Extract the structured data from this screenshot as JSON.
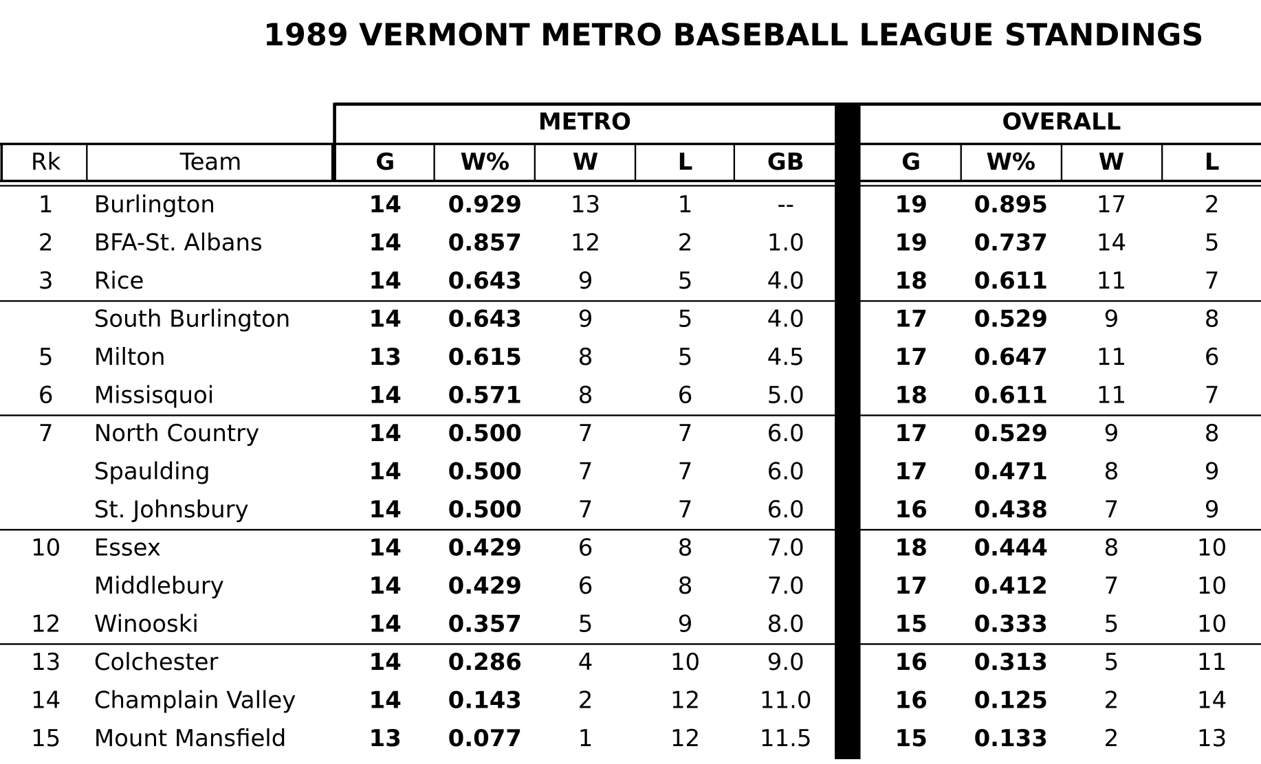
{
  "header": {
    "title": "1989 VERMONT METRO BASEBALL LEAGUE STANDINGS"
  },
  "table": {
    "groups": [
      "METRO",
      "OVERALL"
    ],
    "columns": [
      "Rk",
      "Team",
      "G",
      "W%",
      "W",
      "L",
      "GB",
      "G",
      "W%",
      "W",
      "L"
    ],
    "rows": [
      [
        "1",
        "Burlington",
        "14",
        "0.929",
        "13",
        "1",
        "--",
        "19",
        "0.895",
        "17",
        "2"
      ],
      [
        "2",
        "BFA-St. Albans",
        "14",
        "0.857",
        "12",
        "2",
        "1.0",
        "19",
        "0.737",
        "14",
        "5"
      ],
      [
        "3",
        "Rice",
        "14",
        "0.643",
        "9",
        "5",
        "4.0",
        "18",
        "0.611",
        "11",
        "7"
      ],
      [
        null,
        "South Burlington",
        "14",
        "0.643",
        "9",
        "5",
        "4.0",
        "17",
        "0.529",
        "9",
        "8"
      ],
      [
        "5",
        "Milton",
        "13",
        "0.615",
        "8",
        "5",
        "4.5",
        "17",
        "0.647",
        "11",
        "6"
      ],
      [
        "6",
        "Missisquoi",
        "14",
        "0.571",
        "8",
        "6",
        "5.0",
        "18",
        "0.611",
        "11",
        "7"
      ],
      [
        "7",
        "North Country",
        "14",
        "0.500",
        "7",
        "7",
        "6.0",
        "17",
        "0.529",
        "9",
        "8"
      ],
      [
        null,
        "Spaulding",
        "14",
        "0.500",
        "7",
        "7",
        "6.0",
        "17",
        "0.471",
        "8",
        "9"
      ],
      [
        null,
        "St. Johnsbury",
        "14",
        "0.500",
        "7",
        "7",
        "6.0",
        "16",
        "0.438",
        "7",
        "9"
      ],
      [
        "10",
        "Essex",
        "14",
        "0.429",
        "6",
        "8",
        "7.0",
        "18",
        "0.444",
        "8",
        "10"
      ],
      [
        null,
        "Middlebury",
        "14",
        "0.429",
        "6",
        "8",
        "7.0",
        "17",
        "0.412",
        "7",
        "10"
      ],
      [
        "12",
        "Winooski",
        "14",
        "0.357",
        "5",
        "9",
        "8.0",
        "15",
        "0.333",
        "5",
        "10"
      ],
      [
        "13",
        "Colchester",
        "14",
        "0.286",
        "4",
        "10",
        "9.0",
        "16",
        "0.313",
        "5",
        "11"
      ],
      [
        "14",
        "Champlain Valley",
        "14",
        "0.143",
        "2",
        "12",
        "11.0",
        "16",
        "0.125",
        "2",
        "14"
      ],
      [
        "15",
        "Mount Mansfield",
        "13",
        "0.077",
        "1",
        "12",
        "11.5",
        "15",
        "0.133",
        "2",
        "13"
      ]
    ]
  }
}
